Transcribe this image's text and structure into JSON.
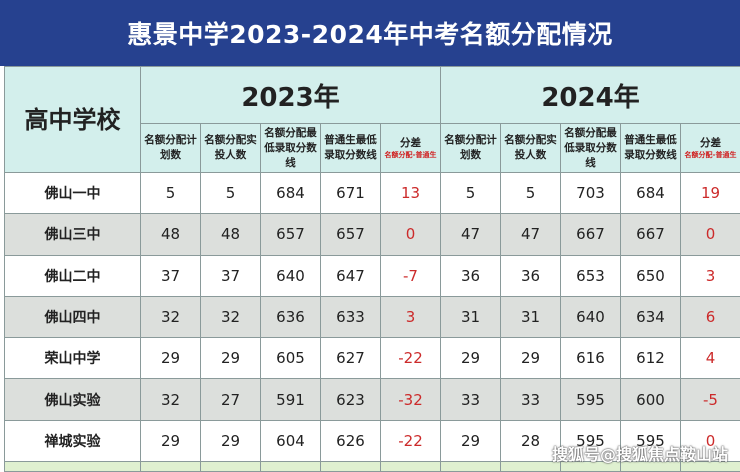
{
  "title": "惠景中学2023-2024年中考名额分配情况",
  "header": {
    "school": "高中学校",
    "years": [
      "2023年",
      "2024年"
    ],
    "columns": [
      "名额分配计划数",
      "名额分配实投人数",
      "名额分配最低录取分数线",
      "普通生最低录取分数线",
      "分差"
    ],
    "diff_note": "名额分配-普通生"
  },
  "rows": [
    {
      "school": "佛山一中",
      "y2023": [
        "5",
        "5",
        "684",
        "671",
        "13"
      ],
      "y2024": [
        "5",
        "5",
        "703",
        "684",
        "19"
      ]
    },
    {
      "school": "佛山三中",
      "y2023": [
        "48",
        "48",
        "657",
        "657",
        "0"
      ],
      "y2024": [
        "47",
        "47",
        "667",
        "667",
        "0"
      ]
    },
    {
      "school": "佛山二中",
      "y2023": [
        "37",
        "37",
        "640",
        "647",
        "-7"
      ],
      "y2024": [
        "36",
        "36",
        "653",
        "650",
        "3"
      ]
    },
    {
      "school": "佛山四中",
      "y2023": [
        "32",
        "32",
        "636",
        "633",
        "3"
      ],
      "y2024": [
        "31",
        "31",
        "640",
        "634",
        "6"
      ]
    },
    {
      "school": "荣山中学",
      "y2023": [
        "29",
        "29",
        "605",
        "627",
        "-22"
      ],
      "y2024": [
        "29",
        "29",
        "616",
        "612",
        "4"
      ]
    },
    {
      "school": "佛山实验",
      "y2023": [
        "32",
        "27",
        "591",
        "623",
        "-32"
      ],
      "y2024": [
        "33",
        "33",
        "595",
        "600",
        "-5"
      ]
    },
    {
      "school": "禅城实验",
      "y2023": [
        "29",
        "29",
        "604",
        "626",
        "-22"
      ],
      "y2024": [
        "29",
        "28",
        "595",
        "595",
        "0"
      ]
    }
  ],
  "watermark": "搜狐号@搜狐焦点鞍山站",
  "colors": {
    "title_bg": "#26418f",
    "header_bg": "#d3efec",
    "diff_text": "#cc2a2a",
    "alt_row": "#dcdfdc"
  }
}
